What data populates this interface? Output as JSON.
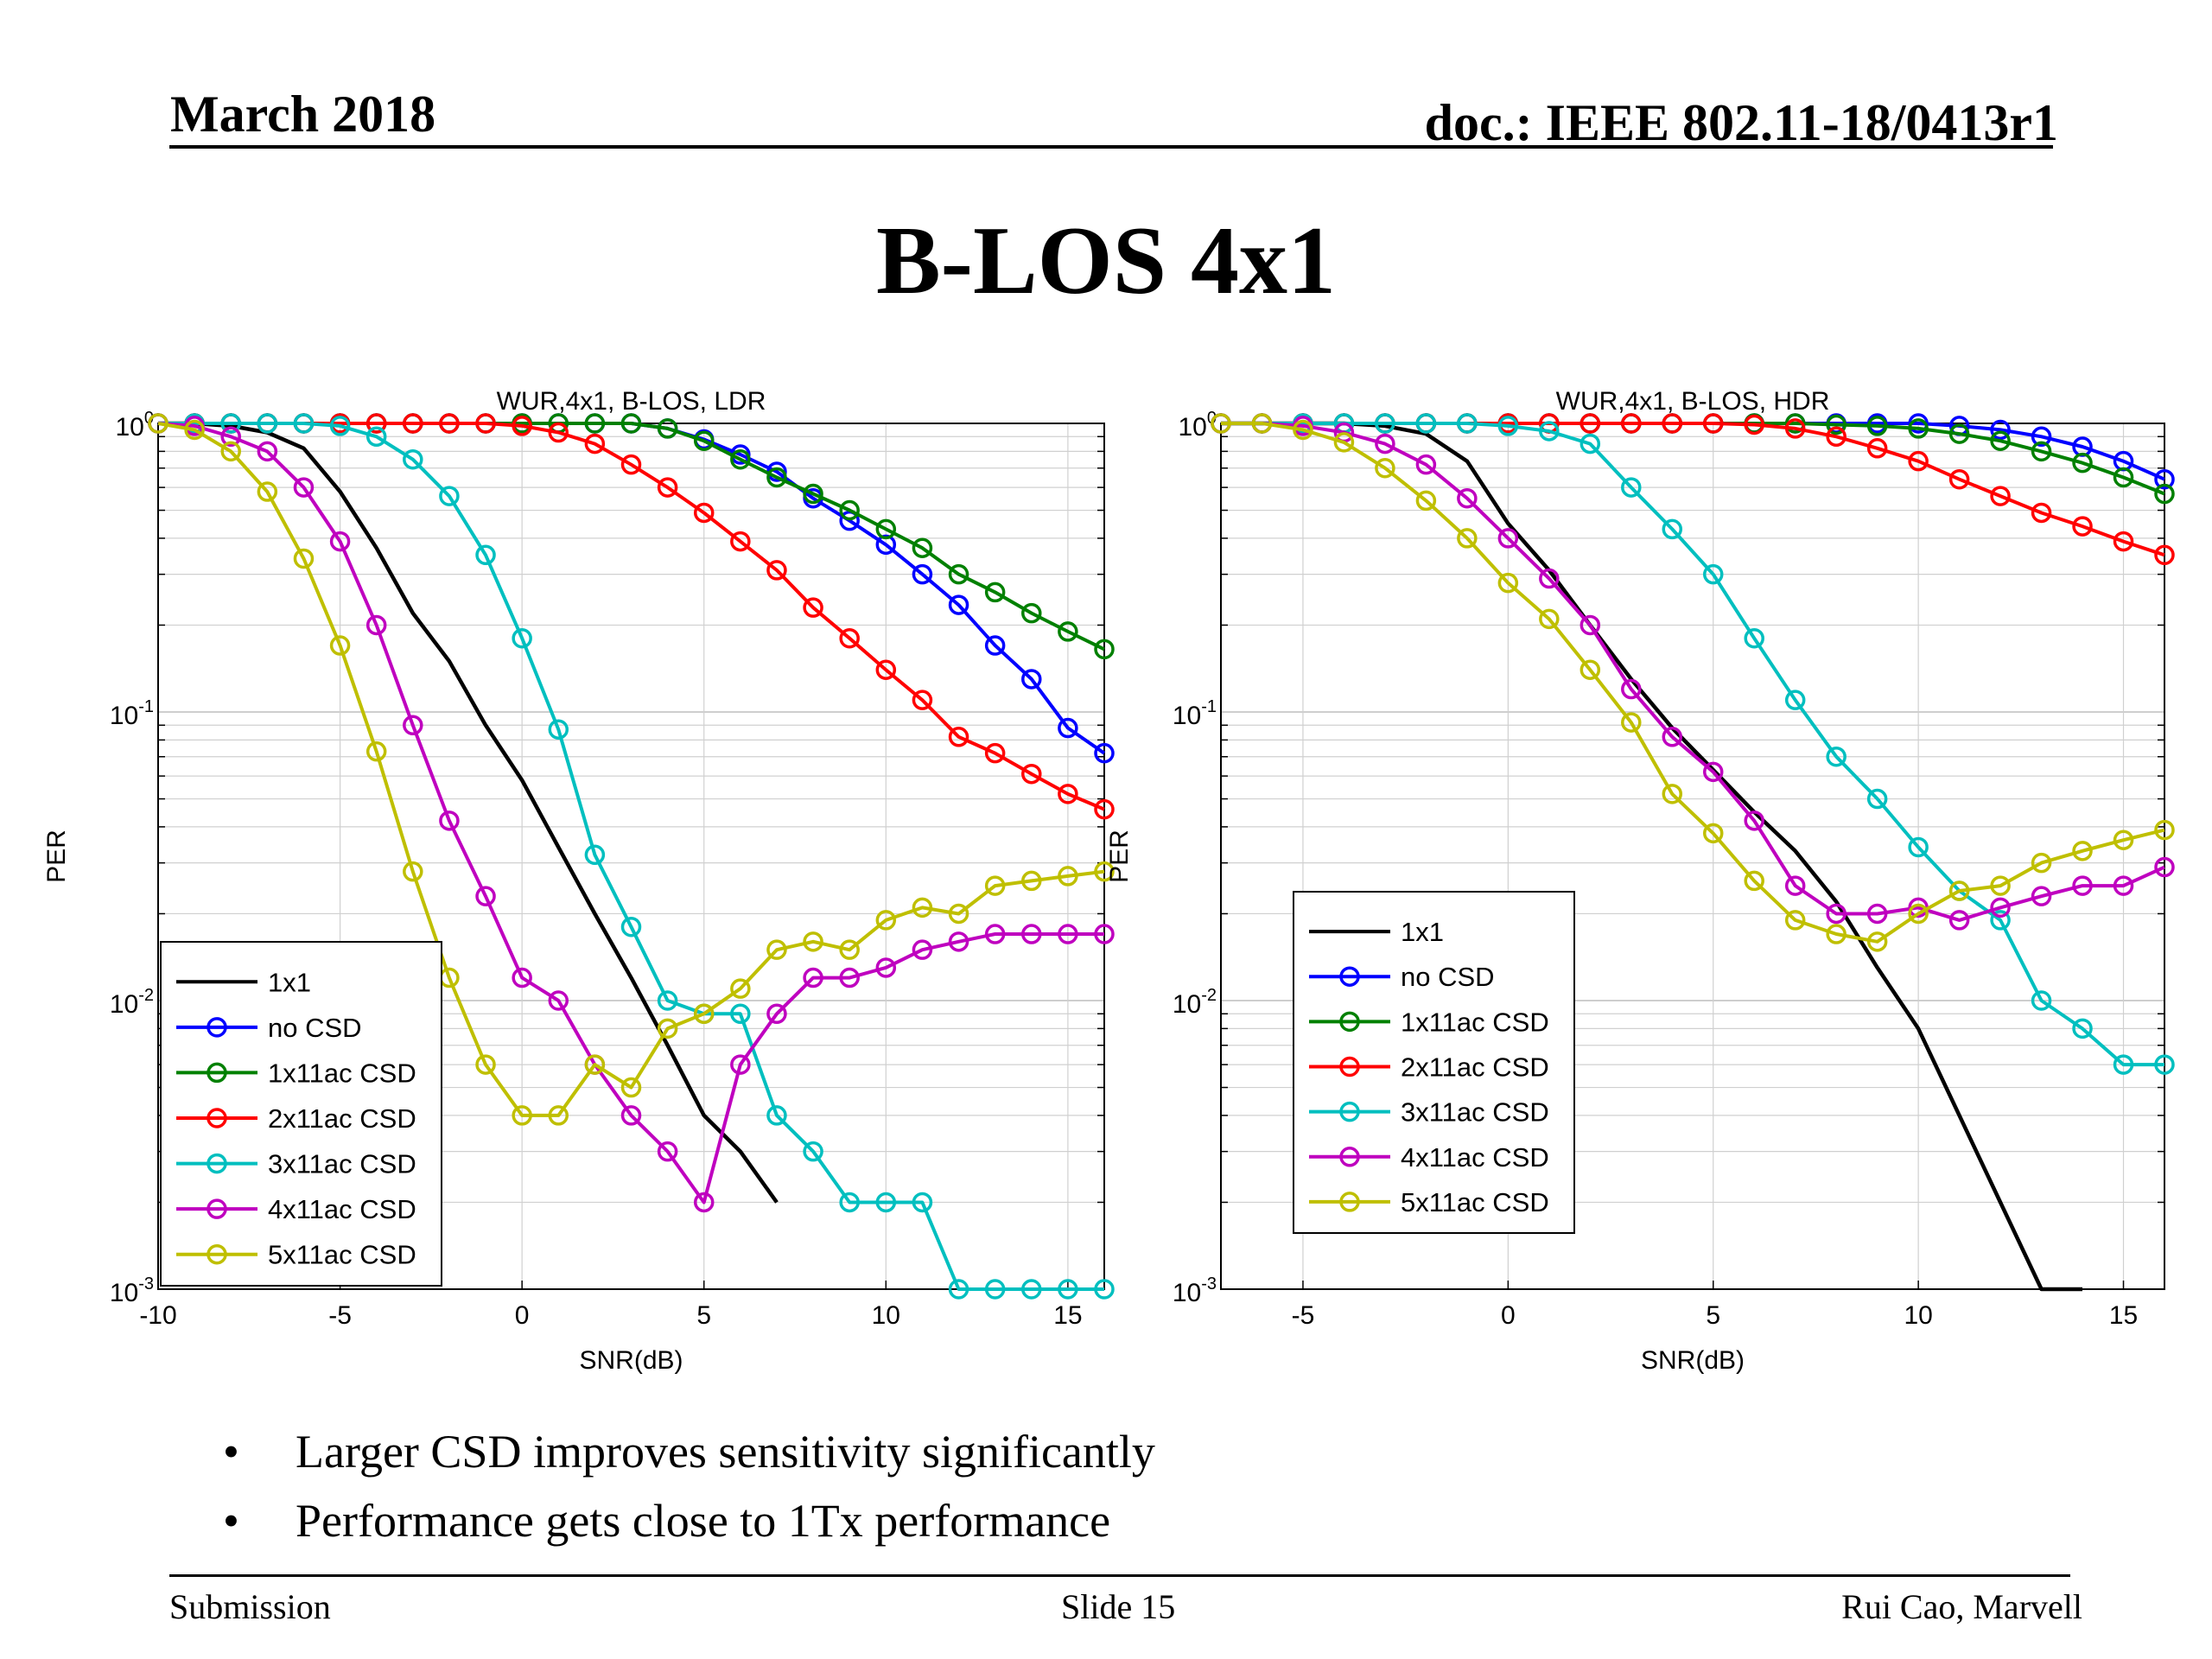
{
  "header": {
    "date": "March 2018",
    "doc": "doc.: IEEE 802.11-18/0413r1"
  },
  "slide_title": "B-LOS 4x1",
  "bullets": [
    "Larger CSD improves sensitivity significantly",
    "Performance gets close to 1Tx performance"
  ],
  "footer": {
    "left": "Submission",
    "center": "Slide 15",
    "right": "Rui Cao, Marvell"
  },
  "colors": {
    "1x1": "#000000",
    "no CSD": "#0000ff",
    "1x11ac CSD": "#008000",
    "2x11ac CSD": "#ff0000",
    "3x11ac CSD": "#00bfbf",
    "4x11ac CSD": "#bf00bf",
    "5x11ac CSD": "#bfbf00"
  },
  "chart_data": [
    {
      "type": "line",
      "title": "WUR,4x1, B-LOS, LDR",
      "xlabel": "SNR(dB)",
      "ylabel": "PER",
      "xlim": [
        -10,
        16
      ],
      "ylim": [
        0.001,
        1
      ],
      "yscale": "log",
      "xticks": [
        "-10",
        "-5",
        "0",
        "5",
        "10",
        "15"
      ],
      "legend_location": "lower-left",
      "grid": true,
      "series": [
        {
          "name": "1x1",
          "marker": false,
          "x": [
            -10,
            -9,
            -8,
            -7,
            -6,
            -5,
            -4,
            -3,
            -2,
            -1,
            0,
            1,
            2,
            3,
            4,
            5,
            6,
            7
          ],
          "y": [
            1,
            1,
            0.98,
            0.93,
            0.82,
            0.58,
            0.37,
            0.22,
            0.15,
            0.09,
            0.058,
            0.034,
            0.02,
            0.012,
            0.007,
            0.004,
            0.003,
            0.002
          ]
        },
        {
          "name": "no CSD",
          "marker": true,
          "x": [
            -10,
            -9,
            -8,
            -7,
            -6,
            -5,
            -4,
            -3,
            -2,
            -1,
            0,
            1,
            2,
            3,
            4,
            5,
            6,
            7,
            8,
            9,
            10,
            11,
            12,
            13,
            14,
            15,
            16
          ],
          "y": [
            1,
            1,
            1,
            1,
            1,
            1,
            1,
            1,
            1,
            1,
            1,
            1,
            1,
            1,
            0.96,
            0.88,
            0.78,
            0.68,
            0.55,
            0.46,
            0.38,
            0.3,
            0.235,
            0.17,
            0.13,
            0.088,
            0.072
          ]
        },
        {
          "name": "1x11ac CSD",
          "marker": true,
          "x": [
            -10,
            -9,
            -8,
            -7,
            -6,
            -5,
            -4,
            -3,
            -2,
            -1,
            0,
            1,
            2,
            3,
            4,
            5,
            6,
            7,
            8,
            9,
            10,
            11,
            12,
            13,
            14,
            15,
            16
          ],
          "y": [
            1,
            1,
            1,
            1,
            1,
            1,
            1,
            1,
            1,
            1,
            1,
            1,
            1,
            1,
            0.96,
            0.87,
            0.75,
            0.65,
            0.57,
            0.5,
            0.43,
            0.37,
            0.3,
            0.26,
            0.22,
            0.19,
            0.165
          ]
        },
        {
          "name": "2x11ac CSD",
          "marker": true,
          "x": [
            -10,
            -9,
            -8,
            -7,
            -6,
            -5,
            -4,
            -3,
            -2,
            -1,
            0,
            1,
            2,
            3,
            4,
            5,
            6,
            7,
            8,
            9,
            10,
            11,
            12,
            13,
            14,
            15,
            16
          ],
          "y": [
            1,
            1,
            1,
            1,
            1,
            1,
            1,
            1,
            1,
            1,
            0.98,
            0.93,
            0.85,
            0.72,
            0.6,
            0.49,
            0.39,
            0.31,
            0.23,
            0.18,
            0.14,
            0.11,
            0.082,
            0.072,
            0.061,
            0.052,
            0.046
          ]
        },
        {
          "name": "3x11ac CSD",
          "marker": true,
          "x": [
            -10,
            -9,
            -8,
            -7,
            -6,
            -5,
            -4,
            -3,
            -2,
            -1,
            0,
            1,
            2,
            3,
            4,
            5,
            6,
            7,
            8,
            9,
            10,
            11,
            12,
            13,
            14,
            15,
            16
          ],
          "y": [
            1,
            1,
            1,
            1,
            1,
            0.98,
            0.9,
            0.75,
            0.56,
            0.35,
            0.18,
            0.087,
            0.032,
            0.018,
            0.01,
            0.009,
            0.009,
            0.004,
            0.003,
            0.002,
            0.002,
            0.002,
            0.001,
            0.001,
            0.001,
            0.001,
            0.001
          ]
        },
        {
          "name": "4x11ac CSD",
          "marker": true,
          "x": [
            -10,
            -9,
            -8,
            -7,
            -6,
            -5,
            -4,
            -3,
            -2,
            -1,
            0,
            1,
            2,
            3,
            4,
            5,
            6,
            7,
            8,
            9,
            10,
            11,
            12,
            13,
            14,
            15,
            16
          ],
          "y": [
            1,
            0.98,
            0.9,
            0.8,
            0.6,
            0.39,
            0.2,
            0.09,
            0.042,
            0.023,
            0.012,
            0.01,
            0.006,
            0.004,
            0.003,
            0.002,
            0.006,
            0.009,
            0.012,
            0.012,
            0.013,
            0.015,
            0.016,
            0.017,
            0.017,
            0.017,
            0.017
          ]
        },
        {
          "name": "5x11ac CSD",
          "marker": true,
          "x": [
            -10,
            -9,
            -8,
            -7,
            -6,
            -5,
            -4,
            -3,
            -2,
            -1,
            0,
            1,
            2,
            3,
            4,
            5,
            6,
            7,
            8,
            9,
            10,
            11,
            12,
            13,
            14,
            15,
            16
          ],
          "y": [
            1,
            0.95,
            0.8,
            0.58,
            0.34,
            0.17,
            0.073,
            0.028,
            0.012,
            0.006,
            0.004,
            0.004,
            0.006,
            0.005,
            0.008,
            0.009,
            0.011,
            0.015,
            0.016,
            0.015,
            0.019,
            0.021,
            0.02,
            0.025,
            0.026,
            0.027,
            0.028
          ]
        }
      ]
    },
    {
      "type": "line",
      "title": "WUR,4x1, B-LOS, HDR",
      "xlabel": "SNR(dB)",
      "ylabel": "PER",
      "xlim": [
        -7,
        16
      ],
      "ylim": [
        0.001,
        1
      ],
      "yscale": "log",
      "xticks": [
        "-5",
        "0",
        "5",
        "10",
        "15"
      ],
      "legend_location": "center-left",
      "grid": true,
      "series": [
        {
          "name": "1x1",
          "marker": false,
          "x": [
            -7,
            -6,
            -5,
            -4,
            -3,
            -2,
            -1,
            0,
            1,
            2,
            3,
            4,
            5,
            6,
            7,
            8,
            9,
            10,
            11,
            12,
            13,
            14
          ],
          "y": [
            1,
            1,
            1,
            1,
            0.98,
            0.92,
            0.74,
            0.45,
            0.31,
            0.2,
            0.13,
            0.088,
            0.063,
            0.045,
            0.033,
            0.022,
            0.013,
            0.008,
            0.004,
            0.002,
            0.001,
            0.001
          ]
        },
        {
          "name": "no CSD",
          "marker": true,
          "x": [
            -7,
            -6,
            -5,
            -4,
            -3,
            -2,
            -1,
            0,
            1,
            2,
            3,
            4,
            5,
            6,
            7,
            8,
            9,
            10,
            11,
            12,
            13,
            14,
            15,
            16
          ],
          "y": [
            1,
            1,
            1,
            1,
            1,
            1,
            1,
            1,
            1,
            1,
            1,
            1,
            1,
            1,
            1,
            1,
            1,
            1,
            0.98,
            0.95,
            0.9,
            0.83,
            0.74,
            0.64
          ]
        },
        {
          "name": "1x11ac CSD",
          "marker": true,
          "x": [
            -7,
            -6,
            -5,
            -4,
            -3,
            -2,
            -1,
            0,
            1,
            2,
            3,
            4,
            5,
            6,
            7,
            8,
            9,
            10,
            11,
            12,
            13,
            14,
            15,
            16
          ],
          "y": [
            1,
            1,
            1,
            1,
            1,
            1,
            1,
            1,
            1,
            1,
            1,
            1,
            1,
            1,
            1,
            0.99,
            0.98,
            0.96,
            0.92,
            0.87,
            0.8,
            0.73,
            0.65,
            0.57
          ]
        },
        {
          "name": "2x11ac CSD",
          "marker": true,
          "x": [
            -7,
            -6,
            -5,
            -4,
            -3,
            -2,
            -1,
            0,
            1,
            2,
            3,
            4,
            5,
            6,
            7,
            8,
            9,
            10,
            11,
            12,
            13,
            14,
            15,
            16
          ],
          "y": [
            1,
            1,
            1,
            1,
            1,
            1,
            1,
            1,
            1,
            1,
            1,
            1,
            1,
            0.99,
            0.96,
            0.9,
            0.82,
            0.74,
            0.64,
            0.56,
            0.49,
            0.44,
            0.39,
            0.35
          ]
        },
        {
          "name": "3x11ac CSD",
          "marker": true,
          "x": [
            -7,
            -6,
            -5,
            -4,
            -3,
            -2,
            -1,
            0,
            1,
            2,
            3,
            4,
            5,
            6,
            7,
            8,
            9,
            10,
            11,
            12,
            13,
            14,
            15,
            16
          ],
          "y": [
            1,
            1,
            1,
            1,
            1,
            1,
            1,
            0.98,
            0.94,
            0.85,
            0.6,
            0.43,
            0.3,
            0.18,
            0.11,
            0.07,
            0.05,
            0.034,
            0.024,
            0.019,
            0.01,
            0.008,
            0.006,
            0.006
          ]
        },
        {
          "name": "4x11ac CSD",
          "marker": true,
          "x": [
            -7,
            -6,
            -5,
            -4,
            -3,
            -2,
            -1,
            0,
            1,
            2,
            3,
            4,
            5,
            6,
            7,
            8,
            9,
            10,
            11,
            12,
            13,
            14,
            15,
            16
          ],
          "y": [
            1,
            1,
            0.98,
            0.93,
            0.85,
            0.72,
            0.55,
            0.4,
            0.29,
            0.2,
            0.12,
            0.082,
            0.062,
            0.042,
            0.025,
            0.02,
            0.02,
            0.021,
            0.019,
            0.021,
            0.023,
            0.025,
            0.025,
            0.029
          ]
        },
        {
          "name": "5x11ac CSD",
          "marker": true,
          "x": [
            -7,
            -6,
            -5,
            -4,
            -3,
            -2,
            -1,
            0,
            1,
            2,
            3,
            4,
            5,
            6,
            7,
            8,
            9,
            10,
            11,
            12,
            13,
            14,
            15,
            16
          ],
          "y": [
            1,
            1,
            0.95,
            0.86,
            0.7,
            0.54,
            0.4,
            0.28,
            0.21,
            0.14,
            0.092,
            0.052,
            0.038,
            0.026,
            0.019,
            0.017,
            0.016,
            0.02,
            0.024,
            0.025,
            0.03,
            0.033,
            0.036,
            0.039
          ]
        }
      ]
    }
  ]
}
